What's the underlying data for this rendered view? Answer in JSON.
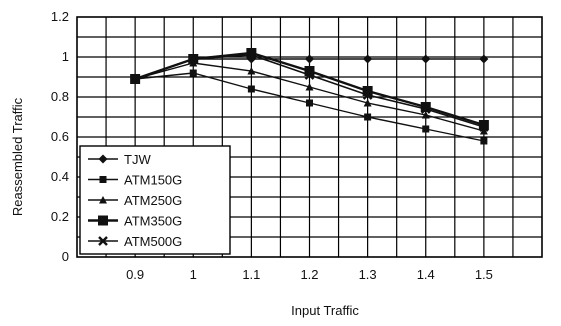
{
  "chart_data": {
    "type": "line",
    "title": "",
    "xlabel": "Input Traffic",
    "ylabel": "Reassembled Traffic",
    "x": [
      0.9,
      1.0,
      1.1,
      1.2,
      1.3,
      1.4,
      1.5
    ],
    "x_tick_labels": [
      "0.9",
      "1",
      "1.1",
      "1.2",
      "1.3",
      "1.4",
      "1.5"
    ],
    "y_ticks": [
      0,
      0.2,
      0.4,
      0.6,
      0.8,
      1,
      1.2
    ],
    "y_tick_labels": [
      "0",
      "0.2",
      "0.4",
      "0.6",
      "0.8",
      "1",
      "1.2"
    ],
    "xlim": [
      0.8,
      1.6
    ],
    "ylim": [
      0,
      1.2
    ],
    "grid": true,
    "legend_position": "bottom-left",
    "series": [
      {
        "name": "TJW",
        "marker": "diamond",
        "values": [
          0.89,
          0.99,
          0.99,
          0.99,
          0.99,
          0.99,
          0.99
        ]
      },
      {
        "name": "ATM150G",
        "marker": "square",
        "values": [
          0.89,
          0.92,
          0.84,
          0.77,
          0.7,
          0.64,
          0.58
        ]
      },
      {
        "name": "ATM250G",
        "marker": "triangle",
        "values": [
          0.89,
          0.97,
          0.93,
          0.85,
          0.77,
          0.71,
          0.63
        ]
      },
      {
        "name": "ATM350G",
        "marker": "bigsquare",
        "values": [
          0.89,
          0.99,
          1.02,
          0.93,
          0.83,
          0.75,
          0.66
        ]
      },
      {
        "name": "ATM500G",
        "marker": "x",
        "values": [
          0.89,
          0.99,
          1.01,
          0.91,
          0.81,
          0.74,
          0.65
        ]
      }
    ]
  }
}
